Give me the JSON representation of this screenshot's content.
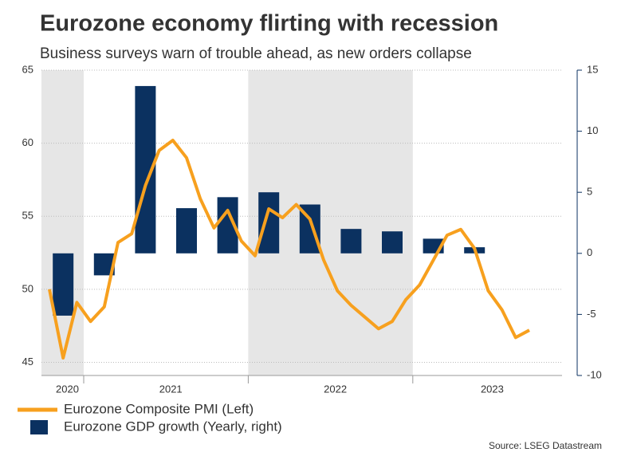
{
  "chart_data": {
    "type": "line",
    "title": "Eurozone economy flirting with recession",
    "subtitle": "Business surveys warn of trouble ahead, as new orders collapse",
    "source": "Source: LSEG Datastream",
    "x": [
      "2020-10",
      "2020-11",
      "2020-12",
      "2021-01",
      "2021-02",
      "2021-03",
      "2021-04",
      "2021-05",
      "2021-06",
      "2021-07",
      "2021-08",
      "2021-09",
      "2021-10",
      "2021-11",
      "2021-12",
      "2022-01",
      "2022-02",
      "2022-03",
      "2022-04",
      "2022-05",
      "2022-06",
      "2022-07",
      "2022-08",
      "2022-09",
      "2022-10",
      "2022-11",
      "2022-12",
      "2023-01",
      "2023-02",
      "2023-03",
      "2023-04",
      "2023-05",
      "2023-06",
      "2023-07",
      "2023-08",
      "2023-09"
    ],
    "year_labels": [
      "2020",
      "2021",
      "2022",
      "2023"
    ],
    "series": [
      {
        "name": "Eurozone Composite PMI (Left)",
        "type": "line",
        "color": "#f7a01e",
        "values": [
          50.0,
          45.3,
          49.1,
          47.8,
          48.8,
          53.2,
          53.8,
          57.1,
          59.5,
          60.2,
          59.0,
          56.2,
          54.2,
          55.4,
          53.3,
          52.3,
          55.5,
          54.9,
          55.8,
          54.8,
          52.0,
          49.9,
          48.9,
          48.1,
          47.3,
          47.8,
          49.3,
          50.3,
          52.0,
          53.7,
          54.1,
          52.8,
          49.9,
          48.6,
          46.7,
          47.2
        ]
      },
      {
        "name": "Eurozone GDP growth (Yearly, right)",
        "type": "bar",
        "axis": "y2",
        "color": "#0b3160",
        "values": [
          null,
          -5.1,
          null,
          null,
          -1.8,
          null,
          null,
          13.7,
          null,
          null,
          3.7,
          null,
          null,
          4.6,
          null,
          null,
          5.0,
          null,
          null,
          4.0,
          null,
          null,
          2.0,
          null,
          null,
          1.8,
          null,
          null,
          1.2,
          null,
          null,
          0.5,
          null,
          null,
          null,
          null
        ]
      }
    ],
    "ylim": [
      44.1,
      65
    ],
    "yticks": [
      45,
      50,
      55,
      60,
      65
    ],
    "y2lim": [
      -10,
      15
    ],
    "y2ticks": [
      -10,
      -5,
      0,
      5,
      10,
      15
    ],
    "grid": true
  }
}
